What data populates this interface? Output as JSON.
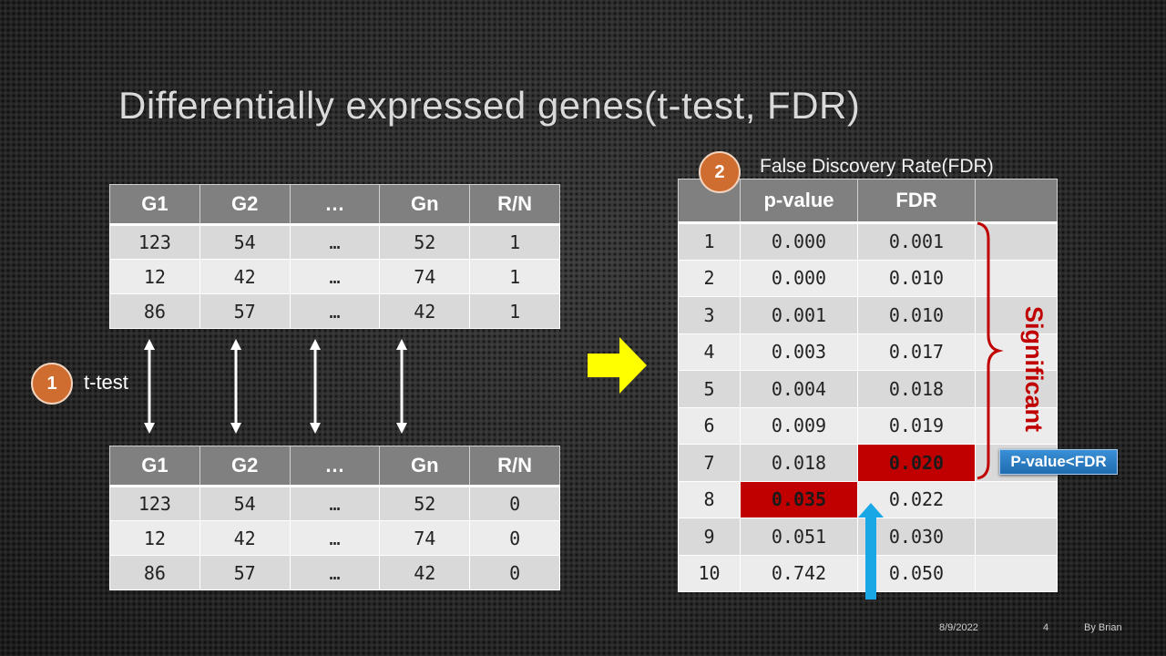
{
  "slide": {
    "title": "Differentially expressed genes(t-test, FDR)",
    "footer": {
      "date": "8/9/2022",
      "page": "4",
      "author": "By Brian"
    }
  },
  "step1": {
    "number": "1",
    "label": "t-test"
  },
  "step2": {
    "number": "2",
    "label": "False Discovery Rate(FDR)"
  },
  "top_table": {
    "headers": [
      "G1",
      "G2",
      "…",
      "Gn",
      "R/N"
    ],
    "rows": [
      [
        "123",
        "54",
        "…",
        "52",
        "1"
      ],
      [
        "12",
        "42",
        "…",
        "74",
        "1"
      ],
      [
        "86",
        "57",
        "…",
        "42",
        "1"
      ]
    ]
  },
  "bottom_table": {
    "headers": [
      "G1",
      "G2",
      "…",
      "Gn",
      "R/N"
    ],
    "rows": [
      [
        "123",
        "54",
        "…",
        "52",
        "0"
      ],
      [
        "12",
        "42",
        "…",
        "74",
        "0"
      ],
      [
        "86",
        "57",
        "…",
        "42",
        "0"
      ]
    ]
  },
  "fdr_table": {
    "headers": [
      "",
      "p-value",
      "FDR",
      ""
    ],
    "rows": [
      [
        "1",
        "0.000",
        "0.001",
        ""
      ],
      [
        "2",
        "0.000",
        "0.010",
        ""
      ],
      [
        "3",
        "0.001",
        "0.010",
        ""
      ],
      [
        "4",
        "0.003",
        "0.017",
        ""
      ],
      [
        "5",
        "0.004",
        "0.018",
        ""
      ],
      [
        "6",
        "0.009",
        "0.019",
        ""
      ],
      [
        "7",
        "0.018",
        "0.020",
        ""
      ],
      [
        "8",
        "0.035",
        "0.022",
        ""
      ],
      [
        "9",
        "0.051",
        "0.030",
        ""
      ],
      [
        "10",
        "0.742",
        "0.050",
        ""
      ]
    ]
  },
  "annotations": {
    "significant": "Significant",
    "callout": "P-value<FDR"
  },
  "colors": {
    "highlight": "#c00000",
    "header_bg": "#808080",
    "step_circle": "#cf6c2f",
    "arrow_yellow": "#ffff00",
    "arrow_blue": "#1aa7e6",
    "callout_bg": "#2a7dc4"
  },
  "icons": {
    "double_arrows": "double-headed-vertical-arrow-icon",
    "process_arrow": "right-arrow-icon",
    "pointer_arrow": "up-arrow-icon",
    "bracket": "curly-brace-icon"
  }
}
